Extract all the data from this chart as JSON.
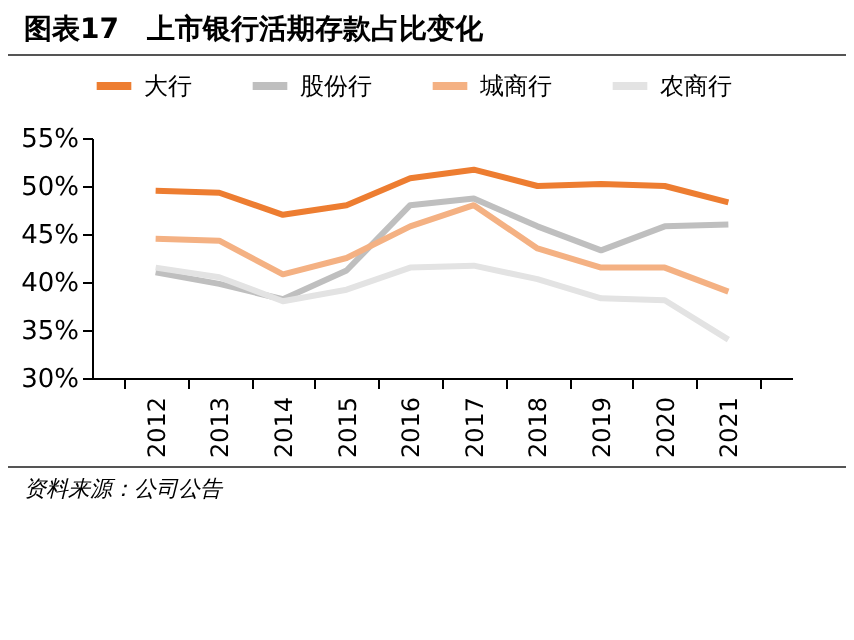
{
  "chart_data": {
    "type": "line",
    "title": "图表17　上市银行活期存款占比变化",
    "categories": [
      "2012",
      "2013",
      "2014",
      "2015",
      "2016",
      "2017",
      "2018",
      "2019",
      "2020",
      "2021"
    ],
    "series": [
      {
        "name": "大行",
        "color": "#ed7d31",
        "values": [
          49.5,
          49.3,
          47.0,
          48.0,
          50.8,
          51.7,
          50.0,
          50.2,
          50.0,
          48.3
        ]
      },
      {
        "name": "股份行",
        "color": "#bfbfbf",
        "values": [
          41.0,
          39.8,
          38.2,
          41.2,
          48.0,
          48.7,
          45.8,
          43.3,
          45.8,
          46.0
        ]
      },
      {
        "name": "城商行",
        "color": "#f4b183",
        "values": [
          44.5,
          44.3,
          40.8,
          42.5,
          45.8,
          48.0,
          43.5,
          41.5,
          41.5,
          39.0
        ]
      },
      {
        "name": "农商行",
        "color": "#e3e3e3",
        "values": [
          41.5,
          40.5,
          38.0,
          39.2,
          41.5,
          41.7,
          40.3,
          38.3,
          38.1,
          34.0
        ]
      }
    ],
    "ylim": [
      30,
      55
    ],
    "yticks": [
      {
        "value": 30,
        "label": "30%"
      },
      {
        "value": 35,
        "label": "35%"
      },
      {
        "value": 40,
        "label": "40%"
      },
      {
        "value": 45,
        "label": "45%"
      },
      {
        "value": 50,
        "label": "50%"
      },
      {
        "value": 55,
        "label": "55%"
      }
    ],
    "grid": false,
    "legend": "top left",
    "marker": "none",
    "line_style": "solid",
    "annotations": [
      "资料来源：公司公告"
    ]
  }
}
